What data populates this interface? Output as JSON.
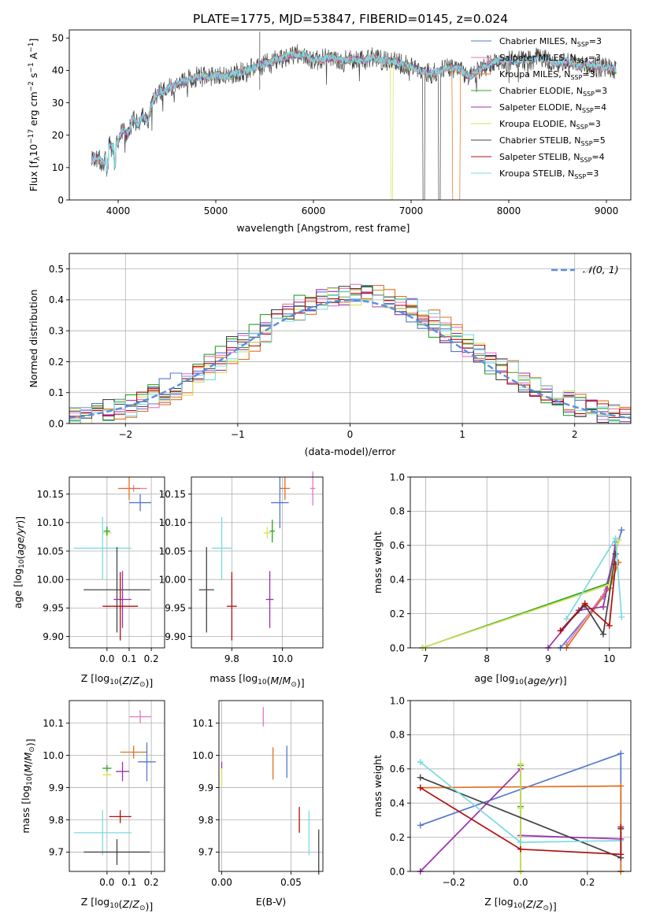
{
  "figure_title": "PLATE=1775, MJD=53847, FIBERID=0145, z=0.024",
  "colors": {
    "Chabrier MILES": "#5577cc",
    "Salpeter MILES": "#e377c2",
    "Kroupa MILES": "#e07020",
    "Chabrier ELODIE": "#2ca02c",
    "Salpeter ELODIE": "#9b30b0",
    "Kroupa ELODIE": "#d4e157",
    "Chabrier STELIB": "#444444",
    "Salpeter STELIB": "#b01010",
    "Kroupa STELIB": "#7adbe0"
  },
  "chart_data": [
    {
      "id": "spectrum",
      "type": "line",
      "xlabel": "wavelength [Angstrom, rest frame]",
      "ylabel_parts": [
        "Flux [f",
        "λ",
        "10",
        "−17",
        " erg cm",
        "−2",
        " s",
        "−1",
        " A",
        "−1",
        "]"
      ],
      "xlim": [
        3500,
        9250
      ],
      "ylim": [
        0,
        52.5
      ],
      "xticks": [
        4000,
        5000,
        6000,
        7000,
        8000,
        9000
      ],
      "yticks": [
        0,
        10,
        20,
        30,
        40,
        50
      ],
      "grid": false,
      "legend_loc": "upper right",
      "continuum": [
        [
          3730,
          12
        ],
        [
          3800,
          13
        ],
        [
          3860,
          11
        ],
        [
          3900,
          17
        ],
        [
          3950,
          16
        ],
        [
          4000,
          18
        ],
        [
          4050,
          22
        ],
        [
          4100,
          20
        ],
        [
          4150,
          25
        ],
        [
          4200,
          23
        ],
        [
          4250,
          26
        ],
        [
          4300,
          24
        ],
        [
          4350,
          30
        ],
        [
          4400,
          33
        ],
        [
          4500,
          34
        ],
        [
          4600,
          36
        ],
        [
          4700,
          37
        ],
        [
          4800,
          38
        ],
        [
          4900,
          38
        ],
        [
          5000,
          38.5
        ],
        [
          5100,
          38
        ],
        [
          5200,
          39
        ],
        [
          5300,
          40
        ],
        [
          5400,
          41
        ],
        [
          5500,
          42
        ],
        [
          5600,
          43
        ],
        [
          5700,
          44
        ],
        [
          5800,
          45
        ],
        [
          5900,
          45
        ],
        [
          6000,
          43
        ],
        [
          6100,
          43.5
        ],
        [
          6200,
          44
        ],
        [
          6300,
          43
        ],
        [
          6400,
          43.5
        ],
        [
          6500,
          43
        ],
        [
          6600,
          44
        ],
        [
          6700,
          43
        ],
        [
          6800,
          43
        ],
        [
          6900,
          42
        ],
        [
          7000,
          41
        ],
        [
          7100,
          40
        ],
        [
          7200,
          39
        ],
        [
          7300,
          40
        ],
        [
          7400,
          41
        ],
        [
          7500,
          40
        ],
        [
          7600,
          38
        ],
        [
          7700,
          40
        ],
        [
          7800,
          42
        ],
        [
          7900,
          43
        ],
        [
          8000,
          43
        ],
        [
          8100,
          43
        ],
        [
          8200,
          43
        ],
        [
          8300,
          44
        ],
        [
          8400,
          43
        ],
        [
          8500,
          42
        ],
        [
          8600,
          43
        ],
        [
          8700,
          41
        ],
        [
          8800,
          42
        ],
        [
          8900,
          41
        ],
        [
          9000,
          41
        ],
        [
          9100,
          40
        ]
      ],
      "series": [
        {
          "name": "Chabrier MILES",
          "nssp": "3"
        },
        {
          "name": "Salpeter MILES",
          "nssp": "3"
        },
        {
          "name": "Kroupa MILES",
          "nssp": "3"
        },
        {
          "name": "Chabrier ELODIE",
          "nssp": "3"
        },
        {
          "name": "Salpeter ELODIE",
          "nssp": "4"
        },
        {
          "name": "Kroupa ELODIE",
          "nssp": "3"
        },
        {
          "name": "Chabrier STELIB",
          "nssp": "5"
        },
        {
          "name": "Salpeter STELIB",
          "nssp": "4"
        },
        {
          "name": "Kroupa STELIB",
          "nssp": "3"
        }
      ],
      "dropouts": [
        {
          "series": "Kroupa ELODIE",
          "from": 6790,
          "to": 6810
        },
        {
          "series": "Chabrier STELIB",
          "from": 7120,
          "to": 7140
        },
        {
          "series": "Chabrier STELIB",
          "from": 7280,
          "to": 7300
        },
        {
          "series": "Kroupa MILES",
          "from": 7420,
          "to": 7440
        }
      ]
    },
    {
      "id": "residuals",
      "type": "step-histogram",
      "xlabel": "(data-model)/error",
      "ylabel": "Normed distribution",
      "xlim": [
        -2.5,
        2.5
      ],
      "ylim": [
        0,
        0.55
      ],
      "xticks": [
        -2,
        -1,
        0,
        1,
        2
      ],
      "yticks": [
        0.0,
        0.1,
        0.2,
        0.3,
        0.4,
        0.5
      ],
      "grid": true,
      "legend_loc": "upper right",
      "reference_curve": {
        "name": "𝒩(0, 1)",
        "mean": 0,
        "sigma": 1
      },
      "bin_width": 0.1
    },
    {
      "id": "age-vs-Z",
      "type": "errorbar",
      "xlabel": "Z [log10(Z/Z⊙)]",
      "ylabel": "age [log10(age/yr)]",
      "xlim": [
        -0.17,
        0.26
      ],
      "ylim": [
        9.88,
        10.18
      ],
      "xticks": [
        0.0,
        0.1,
        0.2
      ],
      "yticks": [
        9.9,
        9.95,
        10.0,
        10.05,
        10.1,
        10.15
      ],
      "grid": true,
      "points": [
        {
          "series": "Salpeter MILES",
          "x": 0.12,
          "xerr": 0.06,
          "y": 10.16,
          "yerr": 0.006
        },
        {
          "series": "Kroupa MILES",
          "x": 0.1,
          "xerr": 0.05,
          "y": 10.16,
          "yerr": 0.02
        },
        {
          "series": "Chabrier MILES",
          "x": 0.15,
          "xerr": 0.05,
          "y": 10.135,
          "yerr": 0.015
        },
        {
          "series": "Kroupa ELODIE",
          "x": 0.0,
          "xerr": 0.02,
          "y": 10.082,
          "yerr": 0.01
        },
        {
          "series": "Chabrier ELODIE",
          "x": 0.0,
          "xerr": 0.015,
          "y": 10.085,
          "yerr": 0.008
        },
        {
          "series": "Kroupa STELIB",
          "x": -0.02,
          "xerr": 0.13,
          "y": 10.055,
          "yerr": 0.055
        },
        {
          "series": "Chabrier STELIB",
          "x": 0.045,
          "xerr": 0.15,
          "y": 9.982,
          "yerr": 0.075
        },
        {
          "series": "Salpeter ELODIE",
          "x": 0.07,
          "xerr": 0.04,
          "y": 9.965,
          "yerr": 0.05
        },
        {
          "series": "Salpeter STELIB",
          "x": 0.06,
          "xerr": 0.08,
          "y": 9.953,
          "yerr": 0.06
        }
      ]
    },
    {
      "id": "age-vs-mass",
      "type": "errorbar",
      "xlabel": "mass [log10(M/M⊙)]",
      "ylabel": "",
      "xlim": [
        9.64,
        10.16
      ],
      "ylim": [
        9.88,
        10.18
      ],
      "xticks": [
        9.8,
        10.0
      ],
      "yticks": [
        9.9,
        9.95,
        10.0,
        10.05,
        10.1,
        10.15
      ],
      "grid": true,
      "points": [
        {
          "series": "Salpeter MILES",
          "x": 10.12,
          "xerr": 0.01,
          "y": 10.16,
          "yerr": 0.03
        },
        {
          "series": "Kroupa MILES",
          "x": 10.01,
          "xerr": 0.02,
          "y": 10.16,
          "yerr": 0.02
        },
        {
          "series": "Chabrier MILES",
          "x": 9.99,
          "xerr": 0.035,
          "y": 10.135,
          "yerr": 0.045
        },
        {
          "series": "Kroupa ELODIE",
          "x": 9.94,
          "xerr": 0.015,
          "y": 10.082,
          "yerr": 0.01
        },
        {
          "series": "Chabrier ELODIE",
          "x": 9.96,
          "xerr": 0.01,
          "y": 10.085,
          "yerr": 0.02
        },
        {
          "series": "Kroupa STELIB",
          "x": 9.76,
          "xerr": 0.04,
          "y": 10.055,
          "yerr": 0.055
        },
        {
          "series": "Chabrier STELIB",
          "x": 9.7,
          "xerr": 0.03,
          "y": 9.982,
          "yerr": 0.075
        },
        {
          "series": "Salpeter ELODIE",
          "x": 9.95,
          "xerr": 0.015,
          "y": 9.965,
          "yerr": 0.05
        },
        {
          "series": "Salpeter STELIB",
          "x": 9.8,
          "xerr": 0.02,
          "y": 9.953,
          "yerr": 0.06
        }
      ]
    },
    {
      "id": "weight-vs-age",
      "type": "line",
      "xlabel": "age [log10(age/yr)]",
      "ylabel": "mass weight",
      "xlim": [
        6.75,
        10.35
      ],
      "ylim": [
        0,
        1.0
      ],
      "xticks": [
        7,
        8,
        9,
        10
      ],
      "yticks": [
        0.0,
        0.2,
        0.4,
        0.6,
        0.8,
        1.0
      ],
      "grid": true,
      "series": [
        {
          "name": "Chabrier MILES",
          "x": [
            9.2,
            9.9,
            10.2
          ],
          "y": [
            0.0,
            0.3,
            0.69
          ]
        },
        {
          "name": "Salpeter MILES",
          "x": [
            9.3,
            9.95,
            10.15
          ],
          "y": [
            0.02,
            0.34,
            0.63
          ]
        },
        {
          "name": "Kroupa MILES",
          "x": [
            9.3,
            10.0,
            10.15
          ],
          "y": [
            0.0,
            0.35,
            0.5
          ]
        },
        {
          "name": "Chabrier ELODIE",
          "x": [
            6.95,
            10.0,
            10.1
          ],
          "y": [
            0.0,
            0.38,
            0.62
          ]
        },
        {
          "name": "Salpeter ELODIE",
          "x": [
            9.0,
            9.5,
            9.9,
            10.1
          ],
          "y": [
            0.0,
            0.22,
            0.24,
            0.6
          ]
        },
        {
          "name": "Kroupa ELODIE",
          "x": [
            6.95,
            10.0,
            10.15
          ],
          "y": [
            0.0,
            0.37,
            0.63
          ]
        },
        {
          "name": "Chabrier STELIB",
          "x": [
            9.2,
            9.6,
            9.9,
            10.1
          ],
          "y": [
            0.1,
            0.25,
            0.08,
            0.55
          ]
        },
        {
          "name": "Salpeter STELIB",
          "x": [
            9.2,
            9.6,
            10.0,
            10.1
          ],
          "y": [
            0.1,
            0.26,
            0.13,
            0.49
          ]
        },
        {
          "name": "Kroupa STELIB",
          "x": [
            9.3,
            10.1,
            10.2
          ],
          "y": [
            0.17,
            0.64,
            0.18
          ]
        }
      ]
    },
    {
      "id": "mass-vs-Z",
      "type": "errorbar",
      "xlabel": "Z [log10(Z/Z⊙)]",
      "ylabel": "mass [log10(M/M⊙)]",
      "xlim": [
        -0.17,
        0.26
      ],
      "ylim": [
        9.64,
        10.17
      ],
      "xticks": [
        0.0,
        0.1,
        0.2
      ],
      "yticks": [
        9.7,
        9.8,
        9.9,
        10.0,
        10.1
      ],
      "grid": true,
      "points": [
        {
          "series": "Salpeter MILES",
          "x": 0.15,
          "xerr": 0.05,
          "y": 10.12,
          "yerr": 0.02
        },
        {
          "series": "Kroupa MILES",
          "x": 0.12,
          "xerr": 0.06,
          "y": 10.01,
          "yerr": 0.02
        },
        {
          "series": "Chabrier MILES",
          "x": 0.18,
          "xerr": 0.04,
          "y": 9.98,
          "yerr": 0.06
        },
        {
          "series": "Chabrier ELODIE",
          "x": 0.0,
          "xerr": 0.02,
          "y": 9.96,
          "yerr": 0.01
        },
        {
          "series": "Salpeter ELODIE",
          "x": 0.07,
          "xerr": 0.03,
          "y": 9.95,
          "yerr": 0.03
        },
        {
          "series": "Kroupa ELODIE",
          "x": 0.0,
          "xerr": 0.02,
          "y": 9.94,
          "yerr": 0.01
        },
        {
          "series": "Salpeter STELIB",
          "x": 0.06,
          "xerr": 0.05,
          "y": 9.81,
          "yerr": 0.02
        },
        {
          "series": "Kroupa STELIB",
          "x": -0.02,
          "xerr": 0.13,
          "y": 9.76,
          "yerr": 0.07
        },
        {
          "series": "Chabrier STELIB",
          "x": 0.045,
          "xerr": 0.15,
          "y": 9.7,
          "yerr": 0.04
        }
      ]
    },
    {
      "id": "mass-vs-EBV",
      "type": "errorbar",
      "xlabel": "E(B-V)",
      "ylabel": "",
      "xlim": [
        -0.002,
        0.073
      ],
      "ylim": [
        9.64,
        10.17
      ],
      "xticks": [
        0.0,
        0.05
      ],
      "yticks": [
        9.7,
        9.8,
        9.9,
        10.0,
        10.1
      ],
      "grid": true,
      "points": [
        {
          "series": "Salpeter MILES",
          "x": 0.03,
          "xerr": 0.0,
          "y": 10.12,
          "yerr": 0.03
        },
        {
          "series": "Kroupa MILES",
          "x": 0.037,
          "xerr": 0.0,
          "y": 9.975,
          "yerr": 0.05
        },
        {
          "series": "Chabrier MILES",
          "x": 0.047,
          "xerr": 0.0,
          "y": 9.98,
          "yerr": 0.05
        },
        {
          "series": "Salpeter ELODIE",
          "x": 0.0,
          "xerr": 0.0,
          "y": 9.97,
          "yerr": 0.01
        },
        {
          "series": "Kroupa ELODIE",
          "x": 0.0,
          "xerr": 0.0,
          "y": 9.93,
          "yerr": 0.03
        },
        {
          "series": "Salpeter STELIB",
          "x": 0.056,
          "xerr": 0.0,
          "y": 9.8,
          "yerr": 0.04
        },
        {
          "series": "Kroupa STELIB",
          "x": 0.063,
          "xerr": 0.0,
          "y": 9.76,
          "yerr": 0.07
        },
        {
          "series": "Chabrier STELIB",
          "x": 0.07,
          "xerr": 0.0,
          "y": 9.7,
          "yerr": 0.07
        }
      ]
    },
    {
      "id": "weight-vs-Z",
      "type": "line",
      "xlabel": "Z [log10(Z/Z⊙)]",
      "ylabel": "mass weight",
      "xlim": [
        -0.33,
        0.33
      ],
      "ylim": [
        0,
        1.0
      ],
      "xticks": [
        -0.2,
        0.0,
        0.2
      ],
      "yticks": [
        0.0,
        0.2,
        0.4,
        0.6,
        0.8,
        1.0
      ],
      "grid": true,
      "series": [
        {
          "name": "Chabrier MILES",
          "x": [
            -0.3,
            0.3,
            0.3
          ],
          "y": [
            0.27,
            0.69,
            0.0
          ]
        },
        {
          "name": "Kroupa MILES",
          "x": [
            -0.3,
            0.3,
            0.3
          ],
          "y": [
            0.49,
            0.5,
            0.0
          ]
        },
        {
          "name": "Salpeter ELODIE",
          "x": [
            -0.3,
            0.0,
            0.0,
            0.3
          ],
          "y": [
            0.0,
            0.6,
            0.21,
            0.19
          ]
        },
        {
          "name": "Chabrier ELODIE",
          "x": [
            0.0,
            0.0,
            0.0
          ],
          "y": [
            0.0,
            0.38,
            0.62
          ]
        },
        {
          "name": "Kroupa ELODIE",
          "x": [
            0.0,
            0.0,
            0.0
          ],
          "y": [
            0.0,
            0.37,
            0.63
          ]
        },
        {
          "name": "Chabrier STELIB",
          "x": [
            -0.3,
            0.3,
            0.3
          ],
          "y": [
            0.55,
            0.08,
            0.25
          ]
        },
        {
          "name": "Kroupa STELIB",
          "x": [
            -0.3,
            0.0,
            0.3
          ],
          "y": [
            0.64,
            0.17,
            0.18
          ]
        },
        {
          "name": "Salpeter STELIB",
          "x": [
            -0.3,
            0.0,
            0.3,
            0.3
          ],
          "y": [
            0.49,
            0.13,
            0.1,
            0.26
          ]
        }
      ]
    }
  ]
}
